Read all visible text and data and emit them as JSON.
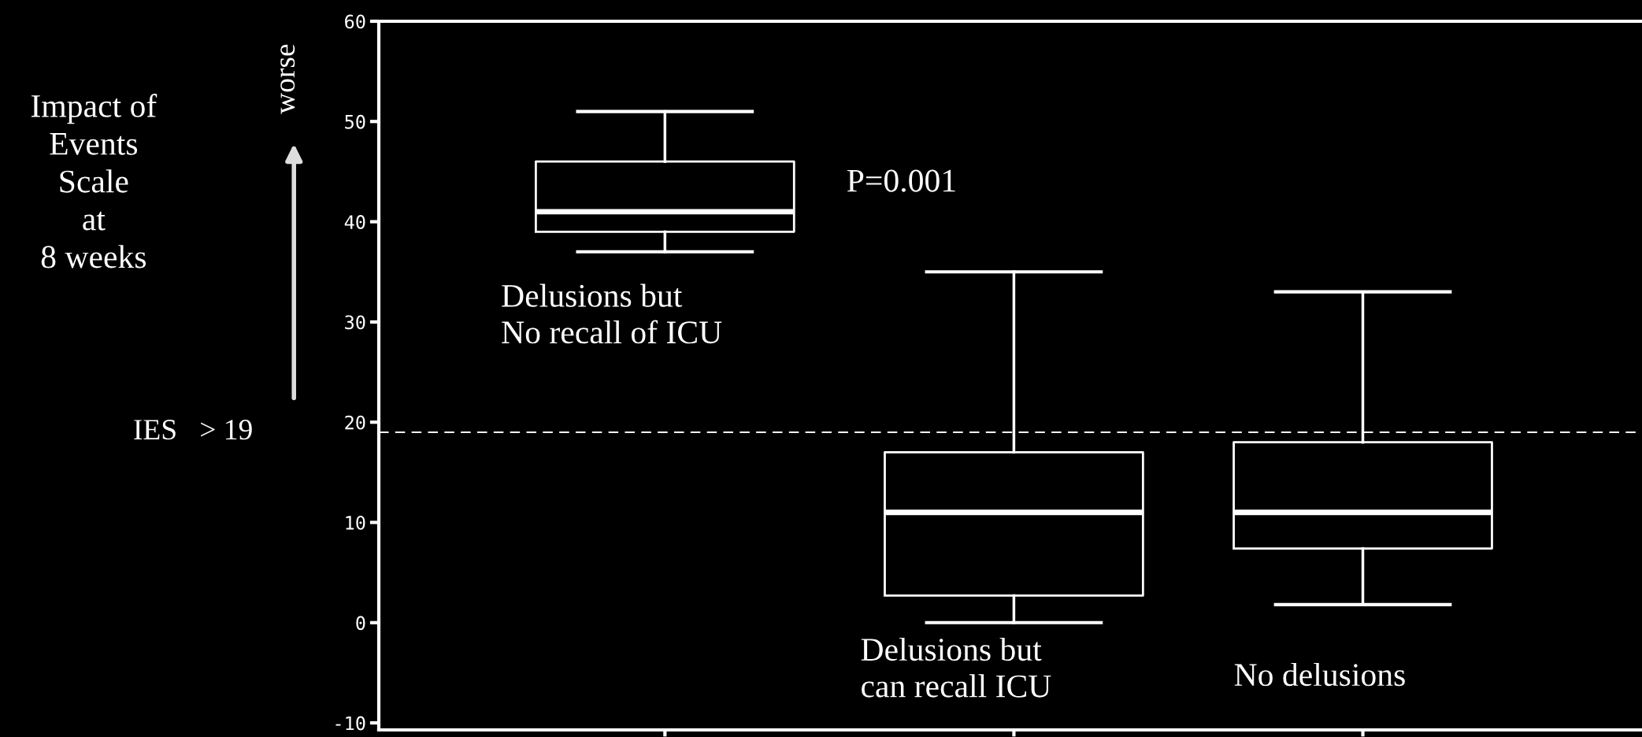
{
  "chart_data": {
    "type": "box",
    "categories": [
      null,
      null,
      null
    ],
    "boxes": [
      {
        "low": 37,
        "q1": 39,
        "median": 41,
        "q3": 46,
        "high": 51
      },
      {
        "low": 0,
        "q1": 2.7,
        "median": 11,
        "q3": 17,
        "high": 35
      },
      {
        "low": 1.8,
        "q1": 7.4,
        "median": 11,
        "q3": 18,
        "high": 33
      }
    ],
    "color": "#ffffff",
    "ylim": [
      -10.7,
      60
    ],
    "yticks": [
      -10,
      0,
      10,
      20,
      30,
      40,
      50,
      60
    ],
    "grid": false,
    "ref_lines": [
      {
        "axis": "y",
        "value": 19,
        "label": "IES   > 19",
        "color": "#ffffff",
        "line_style": "dashed"
      }
    ],
    "annotations": [
      "P=0.001",
      "Delusions but\nNo recall of ICU",
      "Delusions but\ncan recall ICU",
      "No delusions",
      "worse",
      "Impact of\nEvents\nScale\nat\n8 weeks"
    ]
  }
}
